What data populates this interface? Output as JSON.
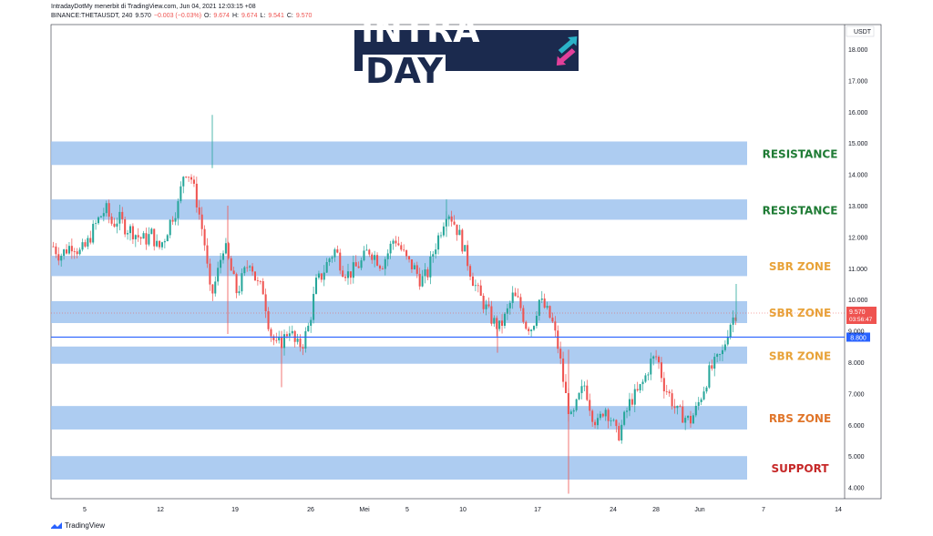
{
  "header": {
    "line1": "IntradayDotMy menerbit di TradingView.com, Jun 04, 2021 12:03:15 +08",
    "symbol": "BINANCE:THETAUSDT, 240",
    "last": "9.570",
    "change": "−0.003 (−0.03%)",
    "o_label": "O:",
    "o": "9.674",
    "h_label": "H:",
    "h": "9.674",
    "l_label": "L:",
    "l": "9.541",
    "c_label": "C:",
    "c": "9.570"
  },
  "logo": {
    "part1": "INTRA",
    "part2": "DAY"
  },
  "footer": {
    "brand": "TradingView"
  },
  "colors": {
    "zone": "#9fc3ee",
    "up": "#26a69a",
    "down": "#ef5350",
    "resistance": "#1e7b34",
    "orange": "#e8a33a",
    "rbs": "#e0762b",
    "support": "#c62828",
    "hline": "#2962ff"
  },
  "chart_data": {
    "type": "candlestick",
    "currency_label": "USDT",
    "ylim": [
      3.6,
      18.8
    ],
    "y_ticks": [
      "18.000",
      "17.000",
      "16.000",
      "15.000",
      "14.000",
      "13.000",
      "12.000",
      "11.000",
      "10.000",
      "9.000",
      "8.000",
      "7.000",
      "6.000",
      "5.000",
      "4.000"
    ],
    "x_ticks": [
      "5",
      "12",
      "19",
      "26",
      "Mei",
      "5",
      "10",
      "17",
      "24",
      "28",
      "Jun",
      "7",
      "14"
    ],
    "price_label": {
      "value": "9.570",
      "countdown": "03:56:47"
    },
    "hline": {
      "value": 8.8,
      "label": "8.800"
    },
    "zones": [
      {
        "label": "RESISTANCE",
        "low": 14.3,
        "high": 15.05,
        "color": "resistance"
      },
      {
        "label": "RESISTANCE",
        "low": 12.55,
        "high": 13.2,
        "color": "resistance"
      },
      {
        "label": "SBR ZONE",
        "low": 10.75,
        "high": 11.4,
        "color": "orange"
      },
      {
        "label": "SBR ZONE",
        "low": 9.25,
        "high": 9.95,
        "color": "orange"
      },
      {
        "label": "SBR ZONE",
        "low": 7.95,
        "high": 8.5,
        "color": "orange"
      },
      {
        "label": "RBS ZONE",
        "low": 5.85,
        "high": 6.6,
        "color": "rbs"
      },
      {
        "label": "SUPPORT",
        "low": 4.25,
        "high": 5.0,
        "color": "support"
      }
    ],
    "close_path": [
      11.7,
      11.4,
      11.6,
      11.8,
      11.5,
      11.7,
      12.2,
      12.6,
      12.9,
      12.4,
      12.6,
      12.3,
      12.2,
      12.0,
      11.9,
      12.1,
      11.6,
      12.0,
      12.6,
      13.0,
      14.2,
      13.9,
      13.0,
      11.9,
      10.0,
      10.8,
      11.8,
      11.0,
      10.2,
      10.8,
      11.3,
      10.5,
      10.3,
      9.0,
      8.5,
      8.7,
      9.1,
      8.5,
      8.6,
      9.2,
      10.5,
      10.8,
      11.3,
      11.6,
      11.0,
      10.8,
      11.0,
      11.2,
      11.6,
      11.4,
      11.1,
      11.5,
      12.0,
      11.6,
      11.2,
      11.0,
      10.6,
      10.8,
      11.6,
      12.2,
      12.9,
      12.5,
      12.0,
      11.3,
      10.6,
      10.1,
      9.7,
      9.3,
      9.1,
      9.5,
      10.1,
      9.9,
      9.2,
      9.1,
      10.0,
      9.7,
      9.3,
      8.4,
      7.0,
      6.1,
      6.8,
      7.3,
      6.4,
      6.0,
      6.6,
      6.2,
      5.6,
      6.2,
      6.8,
      7.0,
      7.4,
      8.0,
      8.2,
      7.3,
      6.9,
      6.4,
      6.3,
      6.1,
      6.5,
      7.1,
      7.7,
      8.0,
      8.3,
      9.2,
      9.57
    ],
    "series": [
      {
        "name": "THETAUSDT",
        "values_note_label": ""
      }
    ]
  }
}
